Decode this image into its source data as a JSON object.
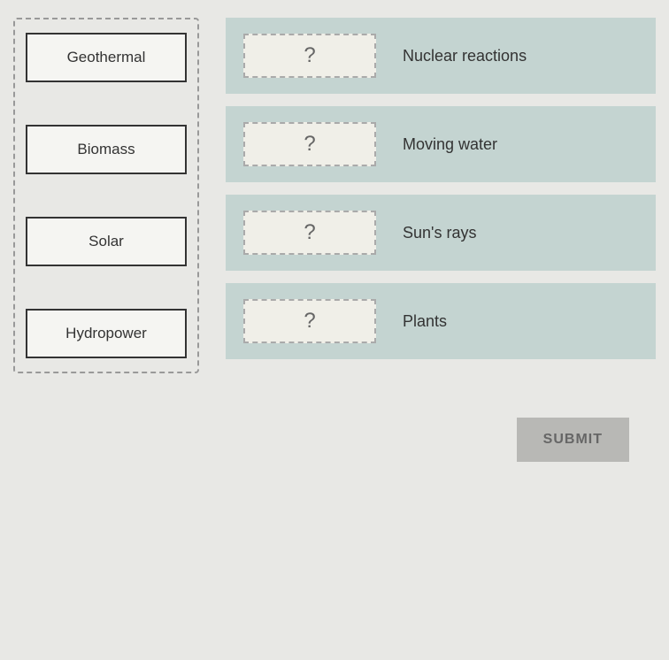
{
  "sources": [
    {
      "label": "Geothermal"
    },
    {
      "label": "Biomass"
    },
    {
      "label": "Solar"
    },
    {
      "label": "Hydropower"
    }
  ],
  "targets": [
    {
      "placeholder": "?",
      "label": "Nuclear reactions"
    },
    {
      "placeholder": "?",
      "label": "Moving water"
    },
    {
      "placeholder": "?",
      "label": "Sun's rays"
    },
    {
      "placeholder": "?",
      "label": "Plants"
    }
  ],
  "submit_label": "SUBMIT",
  "colors": {
    "background": "#e8e8e5",
    "target_row_bg": "#c4d4d1",
    "drop_zone_bg": "#f0efe8",
    "submit_bg": "#b8b8b5",
    "submit_text": "#666",
    "border_dash": "#999",
    "source_border": "#333"
  }
}
